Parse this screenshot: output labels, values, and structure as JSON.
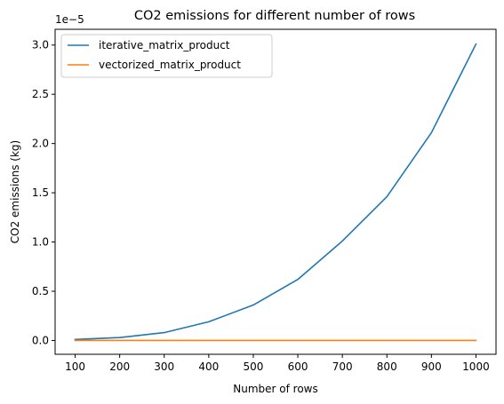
{
  "chart_data": {
    "type": "line",
    "title": "CO2 emissions for different number of rows",
    "xlabel": "Number of rows",
    "ylabel": "CO2 emissions (kg)",
    "y_offset_label": "1e−5",
    "x": [
      100,
      200,
      300,
      400,
      500,
      600,
      700,
      800,
      900,
      1000
    ],
    "xticks": [
      "100",
      "200",
      "300",
      "400",
      "500",
      "600",
      "700",
      "800",
      "900",
      "1000"
    ],
    "yticks": [
      "0.0",
      "0.5",
      "1.0",
      "1.5",
      "2.0",
      "2.5",
      "3.0"
    ],
    "ytick_values": [
      0,
      0.5,
      1.0,
      1.5,
      2.0,
      2.5,
      3.0
    ],
    "xlim": [
      55,
      1045
    ],
    "ylim": [
      -0.14,
      3.16
    ],
    "grid": false,
    "legend": "upper-left",
    "series": [
      {
        "name": "iterative_matrix_product",
        "color": "#1f77b4",
        "values": [
          0.01,
          0.03,
          0.08,
          0.19,
          0.36,
          0.62,
          1.01,
          1.46,
          2.11,
          3.01
        ]
      },
      {
        "name": "vectorized_matrix_product",
        "color": "#ff7f0e",
        "values": [
          0.0,
          0.0,
          0.0,
          0.0,
          0.0,
          0.0,
          0.0,
          0.0,
          0.0,
          0.0
        ]
      }
    ]
  }
}
